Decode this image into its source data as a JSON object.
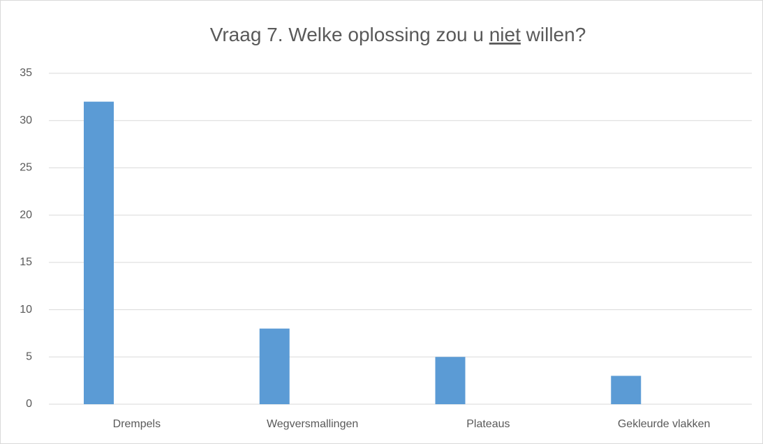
{
  "chart_data": {
    "type": "bar",
    "title": [
      "Vraag 7. Welke oplossing zou u ",
      "niet",
      " willen?"
    ],
    "categories": [
      "Drempels",
      "Wegversmallingen",
      "Plateaus",
      "Gekleurde vlakken"
    ],
    "values": [
      32,
      8,
      5,
      3
    ],
    "color": "#5b9bd5",
    "ylim": [
      0,
      35
    ],
    "yticks": [
      0,
      5,
      10,
      15,
      20,
      25,
      30,
      35
    ],
    "grid": true
  }
}
